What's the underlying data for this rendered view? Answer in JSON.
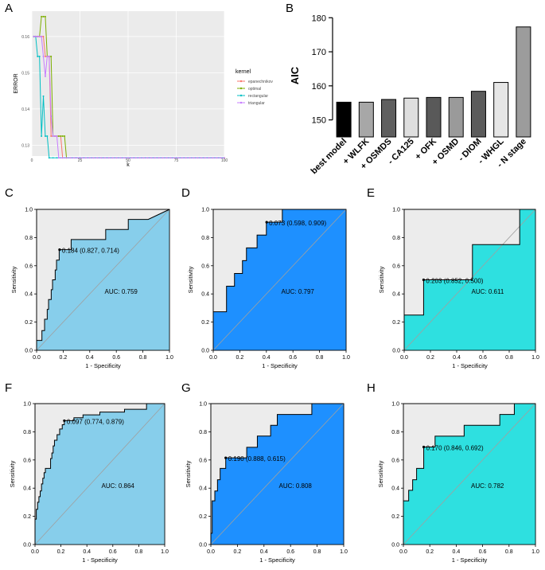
{
  "chart_data": [
    {
      "panel": "A",
      "type": "line",
      "xlabel": "k",
      "ylabel": "ERROR",
      "xlim": [
        0,
        100
      ],
      "ylim": [
        0.127,
        0.167
      ],
      "xticks": [
        "0",
        "25",
        "50",
        "75",
        "100"
      ],
      "yticks": [
        "0.13",
        "0.14",
        "0.15",
        "0.16"
      ],
      "legend_title": "kernel",
      "series": [
        {
          "name": "epanechnikov",
          "color": "#f8766d",
          "points": [
            [
              1,
              0.16
            ],
            [
              2,
              0.16
            ],
            [
              3,
              0.16
            ],
            [
              4,
              0.16
            ],
            [
              5,
              0.16
            ],
            [
              6,
              0.16
            ],
            [
              7,
              0.1545
            ],
            [
              8,
              0.1545
            ],
            [
              9,
              0.1545
            ],
            [
              10,
              0.1325
            ],
            [
              11,
              0.1325
            ],
            [
              12,
              0.1325
            ],
            [
              13,
              0.1325
            ],
            [
              14,
              0.1325
            ],
            [
              15,
              0.1325
            ],
            [
              16,
              0.1265
            ],
            [
              100,
              0.1265
            ]
          ]
        },
        {
          "name": "optimal",
          "color": "#7cae00",
          "points": [
            [
              1,
              0.16
            ],
            [
              2,
              0.16
            ],
            [
              3,
              0.16
            ],
            [
              4,
              0.16
            ],
            [
              5,
              0.1655
            ],
            [
              6,
              0.1655
            ],
            [
              7,
              0.1655
            ],
            [
              8,
              0.1545
            ],
            [
              9,
              0.1545
            ],
            [
              10,
              0.1545
            ],
            [
              11,
              0.1325
            ],
            [
              12,
              0.1325
            ],
            [
              13,
              0.1325
            ],
            [
              14,
              0.1325
            ],
            [
              15,
              0.1325
            ],
            [
              16,
              0.1325
            ],
            [
              17,
              0.1325
            ],
            [
              18,
              0.1265
            ],
            [
              100,
              0.1265
            ]
          ]
        },
        {
          "name": "rectangular",
          "color": "#00bfc4",
          "points": [
            [
              1,
              0.16
            ],
            [
              2,
              0.16
            ],
            [
              3,
              0.1545
            ],
            [
              4,
              0.1545
            ],
            [
              5,
              0.1325
            ],
            [
              6,
              0.1435
            ],
            [
              7,
              0.1325
            ],
            [
              8,
              0.1325
            ],
            [
              9,
              0.1265
            ],
            [
              100,
              0.1265
            ]
          ]
        },
        {
          "name": "triangular",
          "color": "#c77cff",
          "points": [
            [
              1,
              0.16
            ],
            [
              2,
              0.16
            ],
            [
              3,
              0.16
            ],
            [
              4,
              0.16
            ],
            [
              5,
              0.16
            ],
            [
              6,
              0.1545
            ],
            [
              7,
              0.149
            ],
            [
              8,
              0.1545
            ],
            [
              9,
              0.1545
            ],
            [
              10,
              0.138
            ],
            [
              11,
              0.1325
            ],
            [
              12,
              0.1325
            ],
            [
              13,
              0.1325
            ],
            [
              14,
              0.1265
            ],
            [
              100,
              0.1265
            ]
          ]
        }
      ]
    },
    {
      "panel": "B",
      "type": "bar",
      "ylabel": "AIC",
      "ylim": [
        145,
        181
      ],
      "yticks": [
        "150",
        "160",
        "170",
        "180"
      ],
      "categories": [
        "best model",
        "+ WLFK",
        "+ OSMDS",
        "- CA125",
        "+ OFK",
        "+ OSMD",
        "- DIOM",
        "- WHGL",
        "- N stage"
      ],
      "values": [
        155.2,
        155.2,
        156.0,
        156.4,
        156.6,
        156.6,
        158.4,
        161.0,
        177.3
      ],
      "colors": [
        "#000000",
        "#a7a7a7",
        "#5f5f5f",
        "#dedede",
        "#595959",
        "#9a9a9a",
        "#5c5c5c",
        "#e6e6e6",
        "#9c9c9c"
      ]
    },
    {
      "panel": "C",
      "type": "line",
      "xlabel": "1 - Specificity",
      "ylabel": "Sensitivity",
      "fill": "#87ceeb",
      "auc_label": "AUC: 0.759",
      "threshold_label": "0.184 (0.827, 0.714)",
      "threshold_point": [
        0.173,
        0.714
      ],
      "ticks": [
        "0.0",
        "0.2",
        "0.4",
        "0.6",
        "0.8",
        "1.0"
      ],
      "roc": [
        [
          0,
          0
        ],
        [
          0,
          0.07
        ],
        [
          0.04,
          0.07
        ],
        [
          0.04,
          0.14
        ],
        [
          0.06,
          0.14
        ],
        [
          0.06,
          0.22
        ],
        [
          0.08,
          0.22
        ],
        [
          0.08,
          0.29
        ],
        [
          0.09,
          0.29
        ],
        [
          0.09,
          0.36
        ],
        [
          0.11,
          0.36
        ],
        [
          0.11,
          0.43
        ],
        [
          0.12,
          0.43
        ],
        [
          0.12,
          0.5
        ],
        [
          0.14,
          0.5
        ],
        [
          0.14,
          0.57
        ],
        [
          0.15,
          0.57
        ],
        [
          0.15,
          0.64
        ],
        [
          0.17,
          0.64
        ],
        [
          0.17,
          0.714
        ],
        [
          0.26,
          0.714
        ],
        [
          0.26,
          0.786
        ],
        [
          0.52,
          0.786
        ],
        [
          0.52,
          0.857
        ],
        [
          0.69,
          0.857
        ],
        [
          0.69,
          0.929
        ],
        [
          0.84,
          0.929
        ],
        [
          1,
          1
        ]
      ]
    },
    {
      "panel": "D",
      "type": "line",
      "xlabel": "1 - Specificity",
      "ylabel": "Sensitivity",
      "fill": "#1e90ff",
      "auc_label": "AUC: 0.797",
      "threshold_label": "0.073 (0.598, 0.909)",
      "threshold_point": [
        0.402,
        0.909
      ],
      "ticks": [
        "0.0",
        "0.2",
        "0.4",
        "0.6",
        "0.8",
        "1.0"
      ],
      "roc": [
        [
          0,
          0
        ],
        [
          0,
          0.273
        ],
        [
          0.1,
          0.273
        ],
        [
          0.1,
          0.455
        ],
        [
          0.16,
          0.455
        ],
        [
          0.16,
          0.545
        ],
        [
          0.22,
          0.545
        ],
        [
          0.22,
          0.636
        ],
        [
          0.25,
          0.636
        ],
        [
          0.25,
          0.727
        ],
        [
          0.33,
          0.727
        ],
        [
          0.33,
          0.818
        ],
        [
          0.4,
          0.818
        ],
        [
          0.4,
          0.909
        ],
        [
          0.52,
          0.909
        ],
        [
          0.52,
          1
        ],
        [
          1,
          1
        ]
      ]
    },
    {
      "panel": "E",
      "type": "line",
      "xlabel": "1 - Specificity",
      "ylabel": "Sensitivity",
      "fill": "#2ee0e0",
      "auc_label": "AUC: 0.611",
      "threshold_label": "0.203 (0.852, 0.500)",
      "threshold_point": [
        0.148,
        0.5
      ],
      "ticks": [
        "0.0",
        "0.2",
        "0.4",
        "0.6",
        "0.8",
        "1.0"
      ],
      "roc": [
        [
          0,
          0
        ],
        [
          0,
          0.25
        ],
        [
          0.148,
          0.25
        ],
        [
          0.148,
          0.5
        ],
        [
          0.52,
          0.5
        ],
        [
          0.52,
          0.75
        ],
        [
          0.88,
          0.75
        ],
        [
          0.88,
          1
        ],
        [
          1,
          1
        ]
      ]
    },
    {
      "panel": "F",
      "type": "line",
      "xlabel": "1 - Specificity",
      "ylabel": "Sensitivity",
      "fill": "#87ceeb",
      "auc_label": "AUC: 0.864",
      "threshold_label": "0.097 (0.774, 0.879)",
      "threshold_point": [
        0.226,
        0.879
      ],
      "ticks": [
        "0.0",
        "0.2",
        "0.4",
        "0.6",
        "0.8",
        "1.0"
      ],
      "roc": [
        [
          0,
          0
        ],
        [
          0,
          0.18
        ],
        [
          0.01,
          0.18
        ],
        [
          0.01,
          0.25
        ],
        [
          0.02,
          0.25
        ],
        [
          0.02,
          0.3
        ],
        [
          0.03,
          0.3
        ],
        [
          0.03,
          0.34
        ],
        [
          0.04,
          0.34
        ],
        [
          0.04,
          0.38
        ],
        [
          0.05,
          0.38
        ],
        [
          0.05,
          0.43
        ],
        [
          0.06,
          0.43
        ],
        [
          0.06,
          0.47
        ],
        [
          0.07,
          0.47
        ],
        [
          0.07,
          0.51
        ],
        [
          0.08,
          0.51
        ],
        [
          0.08,
          0.54
        ],
        [
          0.12,
          0.54
        ],
        [
          0.12,
          0.61
        ],
        [
          0.13,
          0.61
        ],
        [
          0.13,
          0.65
        ],
        [
          0.14,
          0.65
        ],
        [
          0.14,
          0.7
        ],
        [
          0.15,
          0.7
        ],
        [
          0.15,
          0.74
        ],
        [
          0.17,
          0.74
        ],
        [
          0.17,
          0.78
        ],
        [
          0.19,
          0.78
        ],
        [
          0.19,
          0.82
        ],
        [
          0.21,
          0.82
        ],
        [
          0.21,
          0.85
        ],
        [
          0.226,
          0.85
        ],
        [
          0.226,
          0.879
        ],
        [
          0.3,
          0.879
        ],
        [
          0.3,
          0.9
        ],
        [
          0.37,
          0.9
        ],
        [
          0.37,
          0.92
        ],
        [
          0.5,
          0.92
        ],
        [
          0.5,
          0.94
        ],
        [
          0.69,
          0.94
        ],
        [
          0.69,
          0.96
        ],
        [
          0.86,
          0.96
        ],
        [
          0.86,
          1
        ],
        [
          1,
          1
        ]
      ]
    },
    {
      "panel": "G",
      "type": "line",
      "xlabel": "1 - Specificity",
      "ylabel": "Sensitivity",
      "fill": "#1e90ff",
      "auc_label": "AUC: 0.808",
      "threshold_label": "0.190 (0.888, 0.615)",
      "threshold_point": [
        0.112,
        0.615
      ],
      "ticks": [
        "0.0",
        "0.2",
        "0.4",
        "0.6",
        "0.8",
        "1.0"
      ],
      "roc": [
        [
          0,
          0
        ],
        [
          0,
          0.08
        ],
        [
          0.01,
          0.08
        ],
        [
          0.01,
          0.31
        ],
        [
          0.03,
          0.31
        ],
        [
          0.03,
          0.38
        ],
        [
          0.05,
          0.38
        ],
        [
          0.05,
          0.46
        ],
        [
          0.07,
          0.46
        ],
        [
          0.07,
          0.54
        ],
        [
          0.112,
          0.54
        ],
        [
          0.112,
          0.615
        ],
        [
          0.27,
          0.615
        ],
        [
          0.27,
          0.69
        ],
        [
          0.35,
          0.69
        ],
        [
          0.35,
          0.77
        ],
        [
          0.45,
          0.77
        ],
        [
          0.45,
          0.846
        ],
        [
          0.5,
          0.846
        ],
        [
          0.5,
          0.923
        ],
        [
          0.76,
          0.923
        ],
        [
          0.76,
          1
        ],
        [
          1,
          1
        ]
      ]
    },
    {
      "panel": "H",
      "type": "line",
      "xlabel": "1 - Specificity",
      "ylabel": "Sensitivity",
      "fill": "#2ee0e0",
      "auc_label": "AUC: 0.782",
      "threshold_label": "0.170 (0.846, 0.692)",
      "threshold_point": [
        0.154,
        0.692
      ],
      "ticks": [
        "0.0",
        "0.2",
        "0.4",
        "0.6",
        "0.8",
        "1.0"
      ],
      "roc": [
        [
          0,
          0
        ],
        [
          0,
          0.31
        ],
        [
          0.04,
          0.31
        ],
        [
          0.04,
          0.385
        ],
        [
          0.07,
          0.385
        ],
        [
          0.07,
          0.46
        ],
        [
          0.1,
          0.46
        ],
        [
          0.1,
          0.54
        ],
        [
          0.154,
          0.54
        ],
        [
          0.154,
          0.692
        ],
        [
          0.24,
          0.692
        ],
        [
          0.24,
          0.769
        ],
        [
          0.46,
          0.769
        ],
        [
          0.46,
          0.846
        ],
        [
          0.73,
          0.846
        ],
        [
          0.73,
          0.923
        ],
        [
          0.84,
          0.923
        ],
        [
          0.84,
          1
        ],
        [
          1,
          1
        ]
      ]
    }
  ]
}
